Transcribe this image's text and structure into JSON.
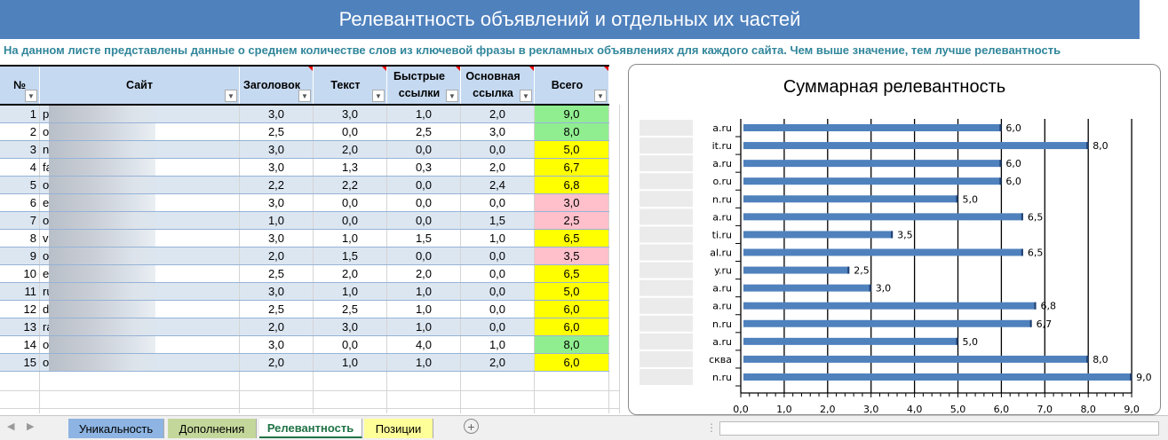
{
  "title": "Релевантность объявлений и отдельных их частей",
  "subtitle": "На данном листе представлены данные о среднем количестве слов из ключевой фразы в рекламных объявлениях для каждого сайта. Чем выше значение, тем лучше релевантность",
  "table": {
    "headers": [
      "№",
      "Сайт",
      "Заголовок",
      "Текст",
      "Быстрые ссылки",
      "Основная ссылка",
      "Всего"
    ],
    "rows": [
      {
        "n": "1",
        "site": "p",
        "h": "3,0",
        "t": "3,0",
        "q": "1,0",
        "m": "2,0",
        "total": "9,0",
        "color": "#90ee90"
      },
      {
        "n": "2",
        "site": "o",
        "h": "2,5",
        "t": "0,0",
        "q": "2,5",
        "m": "3,0",
        "total": "8,0",
        "color": "#90ee90"
      },
      {
        "n": "3",
        "site": "n",
        "h": "3,0",
        "t": "2,0",
        "q": "0,0",
        "m": "0,0",
        "total": "5,0",
        "color": "#ffff00"
      },
      {
        "n": "4",
        "site": "fa",
        "h": "3,0",
        "t": "1,3",
        "q": "0,3",
        "m": "2,0",
        "total": "6,7",
        "color": "#ffff00"
      },
      {
        "n": "5",
        "site": "o",
        "h": "2,2",
        "t": "2,2",
        "q": "0,0",
        "m": "2,4",
        "total": "6,8",
        "color": "#ffff00"
      },
      {
        "n": "6",
        "site": "e",
        "h": "3,0",
        "t": "0,0",
        "q": "0,0",
        "m": "0,0",
        "total": "3,0",
        "color": "#ffc0cb"
      },
      {
        "n": "7",
        "site": "o",
        "h": "1,0",
        "t": "0,0",
        "q": "0,0",
        "m": "1,5",
        "total": "2,5",
        "color": "#ffc0cb"
      },
      {
        "n": "8",
        "site": "v",
        "h": "3,0",
        "t": "1,0",
        "q": "1,5",
        "m": "1,0",
        "total": "6,5",
        "color": "#ffff00"
      },
      {
        "n": "9",
        "site": "o",
        "h": "2,0",
        "t": "1,5",
        "q": "0,0",
        "m": "0,0",
        "total": "3,5",
        "color": "#ffc0cb"
      },
      {
        "n": "10",
        "site": "e",
        "h": "2,5",
        "t": "2,0",
        "q": "2,0",
        "m": "0,0",
        "total": "6,5",
        "color": "#ffff00"
      },
      {
        "n": "11",
        "site": "ru",
        "h": "3,0",
        "t": "1,0",
        "q": "1,0",
        "m": "0,0",
        "total": "5,0",
        "color": "#ffff00"
      },
      {
        "n": "12",
        "site": "d",
        "h": "2,5",
        "t": "2,5",
        "q": "1,0",
        "m": "0,0",
        "total": "6,0",
        "color": "#ffff00"
      },
      {
        "n": "13",
        "site": "ra",
        "h": "2,0",
        "t": "3,0",
        "q": "1,0",
        "m": "0,0",
        "total": "6,0",
        "color": "#ffff00"
      },
      {
        "n": "14",
        "site": "o",
        "h": "3,0",
        "t": "0,0",
        "q": "4,0",
        "m": "1,0",
        "total": "8,0",
        "color": "#90ee90"
      },
      {
        "n": "15",
        "site": "o",
        "h": "2,0",
        "t": "1,0",
        "q": "1,0",
        "m": "2,0",
        "total": "6,0",
        "color": "#ffff00"
      }
    ]
  },
  "chart_data": {
    "type": "bar",
    "orientation": "horizontal",
    "title": "Суммарная релевантность",
    "categories": [
      "a.ru",
      "it.ru",
      "a.ru",
      "o.ru",
      "n.ru",
      "a.ru",
      "ti.ru",
      "al.ru",
      "y.ru",
      "a.ru",
      "a.ru",
      "n.ru",
      "a.ru",
      "сква",
      "n.ru"
    ],
    "values": [
      6.0,
      8.0,
      6.0,
      6.0,
      5.0,
      6.5,
      3.5,
      6.5,
      2.5,
      3.0,
      6.8,
      6.7,
      5.0,
      8.0,
      9.0
    ],
    "data_labels": [
      "6,0",
      "8,0",
      "6,0",
      "6,0",
      "5,0",
      "6,5",
      "3,5",
      "6,5",
      "2,5",
      "3,0",
      "6,8",
      "6,7",
      "5,0",
      "8,0",
      "9,0"
    ],
    "xlim": [
      0,
      9
    ],
    "x_ticks": [
      "0,0",
      "1,0",
      "2,0",
      "3,0",
      "4,0",
      "5,0",
      "6,0",
      "7,0",
      "8,0",
      "9,0"
    ],
    "grid": "vertical major",
    "bar_color": "#4f81bd"
  },
  "sheet_tabs": [
    {
      "label": "Уникальность",
      "color": "#8db4e2",
      "active": false
    },
    {
      "label": "Дополнения",
      "color": "#c4d79b",
      "active": false
    },
    {
      "label": "Релевантность",
      "color": "#fde9d9",
      "active": true
    },
    {
      "label": "Позиции",
      "color": "#ffff99",
      "active": false
    }
  ]
}
